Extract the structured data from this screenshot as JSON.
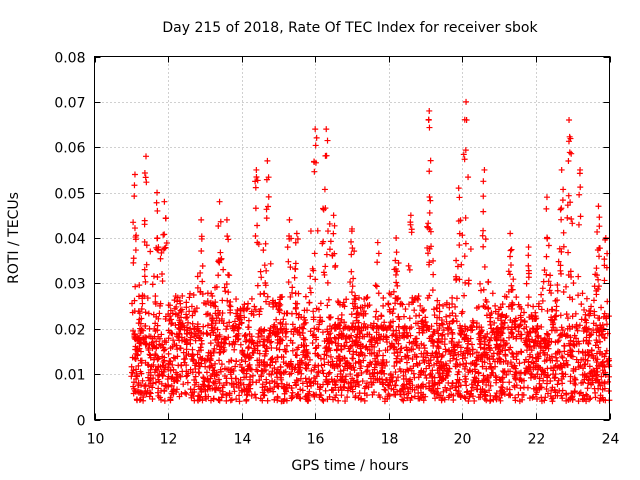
{
  "chart_data": {
    "type": "scatter",
    "title": "Day 215 of 2018, Rate Of TEC Index for receiver sbok",
    "xlabel": "GPS time / hours",
    "ylabel": "ROTI / TECUs",
    "xlim": [
      10,
      24
    ],
    "ylim": [
      0,
      0.08
    ],
    "x_ticks": [
      "10",
      "12",
      "14",
      "16",
      "18",
      "20",
      "22",
      "24"
    ],
    "y_ticks": [
      "0",
      "0.01",
      "0.02",
      "0.03",
      "0.04",
      "0.05",
      "0.06",
      "0.07",
      "0.08"
    ],
    "grid": true,
    "marker": "+",
    "color": "#ff0000",
    "x_start": 11.0,
    "x_end": 24.0,
    "typical_range": [
      0.004,
      0.02
    ],
    "peaks": [
      {
        "x": 11.1,
        "y": 0.054
      },
      {
        "x": 11.4,
        "y": 0.058
      },
      {
        "x": 11.7,
        "y": 0.05
      },
      {
        "x": 11.9,
        "y": 0.048
      },
      {
        "x": 12.9,
        "y": 0.044
      },
      {
        "x": 13.4,
        "y": 0.048
      },
      {
        "x": 13.6,
        "y": 0.044
      },
      {
        "x": 14.4,
        "y": 0.055
      },
      {
        "x": 14.7,
        "y": 0.057
      },
      {
        "x": 15.3,
        "y": 0.044
      },
      {
        "x": 15.5,
        "y": 0.041
      },
      {
        "x": 16.0,
        "y": 0.064
      },
      {
        "x": 16.3,
        "y": 0.064
      },
      {
        "x": 16.5,
        "y": 0.045
      },
      {
        "x": 17.0,
        "y": 0.042
      },
      {
        "x": 17.7,
        "y": 0.039
      },
      {
        "x": 18.2,
        "y": 0.04
      },
      {
        "x": 18.6,
        "y": 0.045
      },
      {
        "x": 19.1,
        "y": 0.068
      },
      {
        "x": 19.9,
        "y": 0.051
      },
      {
        "x": 20.1,
        "y": 0.07
      },
      {
        "x": 20.6,
        "y": 0.055
      },
      {
        "x": 21.3,
        "y": 0.041
      },
      {
        "x": 21.8,
        "y": 0.038
      },
      {
        "x": 22.3,
        "y": 0.049
      },
      {
        "x": 22.7,
        "y": 0.055
      },
      {
        "x": 22.9,
        "y": 0.066
      },
      {
        "x": 23.2,
        "y": 0.055
      },
      {
        "x": 23.7,
        "y": 0.047
      },
      {
        "x": 23.9,
        "y": 0.04
      }
    ]
  }
}
